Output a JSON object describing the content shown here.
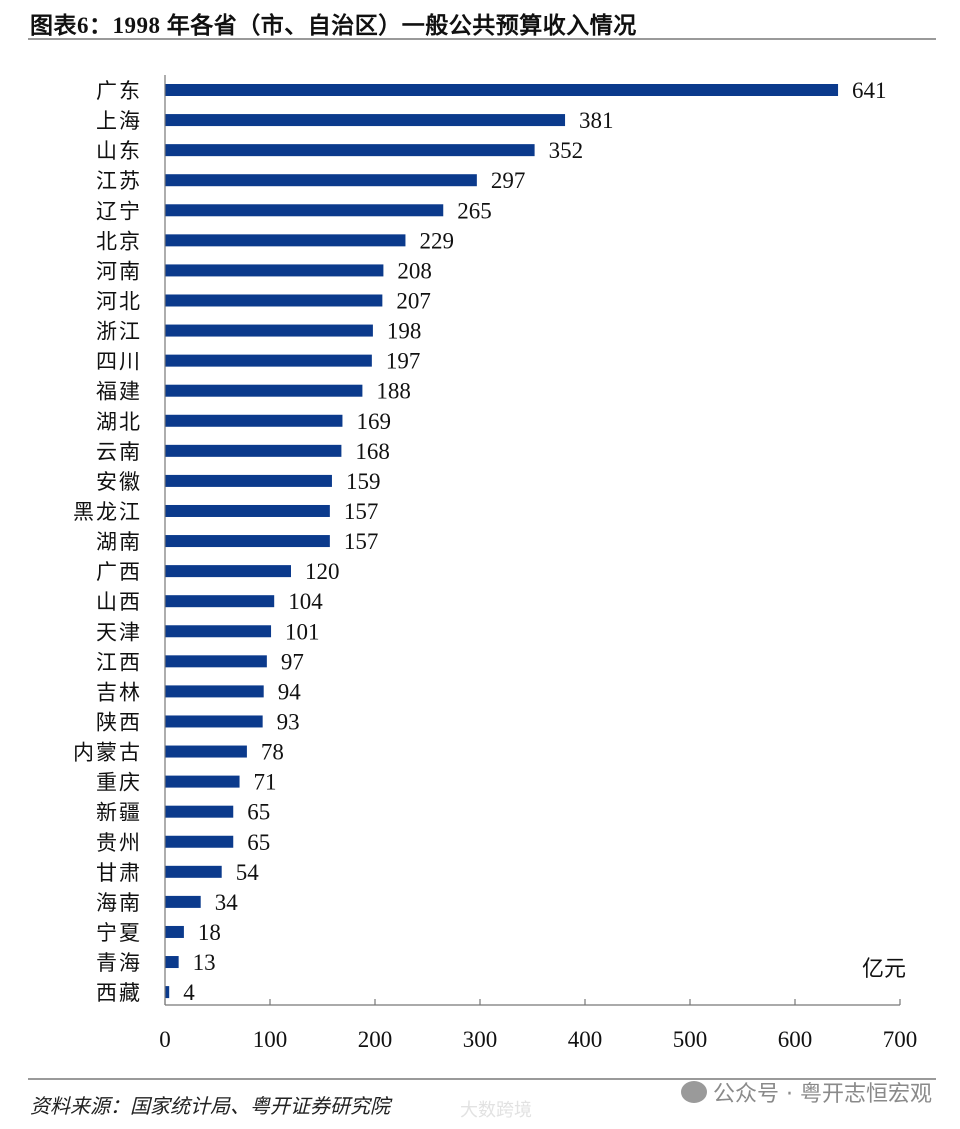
{
  "chart_data": {
    "type": "bar",
    "orientation": "horizontal",
    "title": "图表6：1998 年各省（市、自治区）一般公共预算收入情况",
    "categories": [
      "广东",
      "上海",
      "山东",
      "江苏",
      "辽宁",
      "北京",
      "河南",
      "河北",
      "浙江",
      "四川",
      "福建",
      "湖北",
      "云南",
      "安徽",
      "黑龙江",
      "湖南",
      "广西",
      "山西",
      "天津",
      "江西",
      "吉林",
      "陕西",
      "内蒙古",
      "重庆",
      "新疆",
      "贵州",
      "甘肃",
      "海南",
      "宁夏",
      "青海",
      "西藏"
    ],
    "values": [
      641,
      381,
      352,
      297,
      265,
      229,
      208,
      207,
      198,
      197,
      188,
      169,
      168,
      159,
      157,
      157,
      120,
      104,
      101,
      97,
      94,
      93,
      78,
      71,
      65,
      65,
      54,
      34,
      18,
      13,
      4
    ],
    "unit_label": "亿元",
    "xlim": [
      0,
      700
    ],
    "xticks": [
      "0",
      "100",
      "200",
      "300",
      "400",
      "500",
      "600",
      "700"
    ],
    "grid": false,
    "bar_color": "#0b3a8c",
    "data_labels": true
  },
  "footer": {
    "source": "资料来源：国家统计局、粤开证券研究院",
    "watermark": "公众号 · 粤开志恒宏观",
    "watermark2": "大数跨境"
  }
}
